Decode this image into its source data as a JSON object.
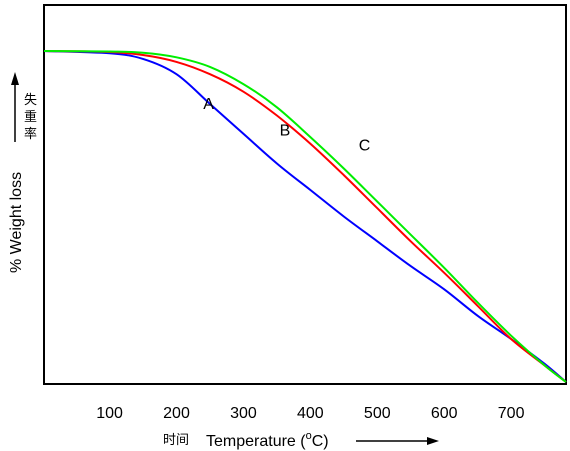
{
  "chart_data": {
    "type": "line",
    "xlabel_cn": "时间",
    "xlabel": "Temperature (",
    "xlabel_sup": "o",
    "xlabel_end": "C)",
    "ylabel": "% Weight loss",
    "ylabel_cn": [
      "失",
      "重",
      "率"
    ],
    "x_ticks": [
      100,
      200,
      300,
      400,
      500,
      600,
      700
    ],
    "xlim": [
      2,
      782
    ],
    "ylim": [
      0,
      100
    ],
    "grid": false,
    "series": [
      {
        "name": "A",
        "color": "#0000ff",
        "x": [
          2,
          100,
          150,
          200,
          250,
          300,
          350,
          400,
          450,
          500,
          550,
          600,
          650,
          700,
          750,
          782
        ],
        "y": [
          0,
          0.7,
          2.4,
          7,
          16,
          25,
          34,
          42,
          50,
          57.5,
          65,
          72,
          80,
          87,
          94.5,
          100
        ]
      },
      {
        "name": "B",
        "color": "#ff0000",
        "x": [
          2,
          100,
          150,
          200,
          250,
          300,
          350,
          400,
          450,
          500,
          550,
          600,
          650,
          700,
          750,
          782
        ],
        "y": [
          0,
          0.3,
          1.2,
          3.3,
          7,
          12.3,
          19.5,
          28,
          37.5,
          47.5,
          57.5,
          67,
          77,
          87,
          95,
          100
        ]
      },
      {
        "name": "C",
        "color": "#00ee00",
        "x": [
          2,
          100,
          150,
          200,
          250,
          300,
          350,
          400,
          450,
          500,
          550,
          600,
          650,
          700,
          750,
          782
        ],
        "y": [
          0,
          0.15,
          0.5,
          1.9,
          4.8,
          10,
          17,
          26,
          35.5,
          45.5,
          55.5,
          65.5,
          76,
          86,
          95,
          100
        ]
      }
    ],
    "curve_labels": [
      {
        "text": "A",
        "x": 248,
        "y": 17.5
      },
      {
        "text": "B",
        "x": 362,
        "y": 25.5
      },
      {
        "text": "C",
        "x": 481,
        "y": 30
      }
    ]
  }
}
